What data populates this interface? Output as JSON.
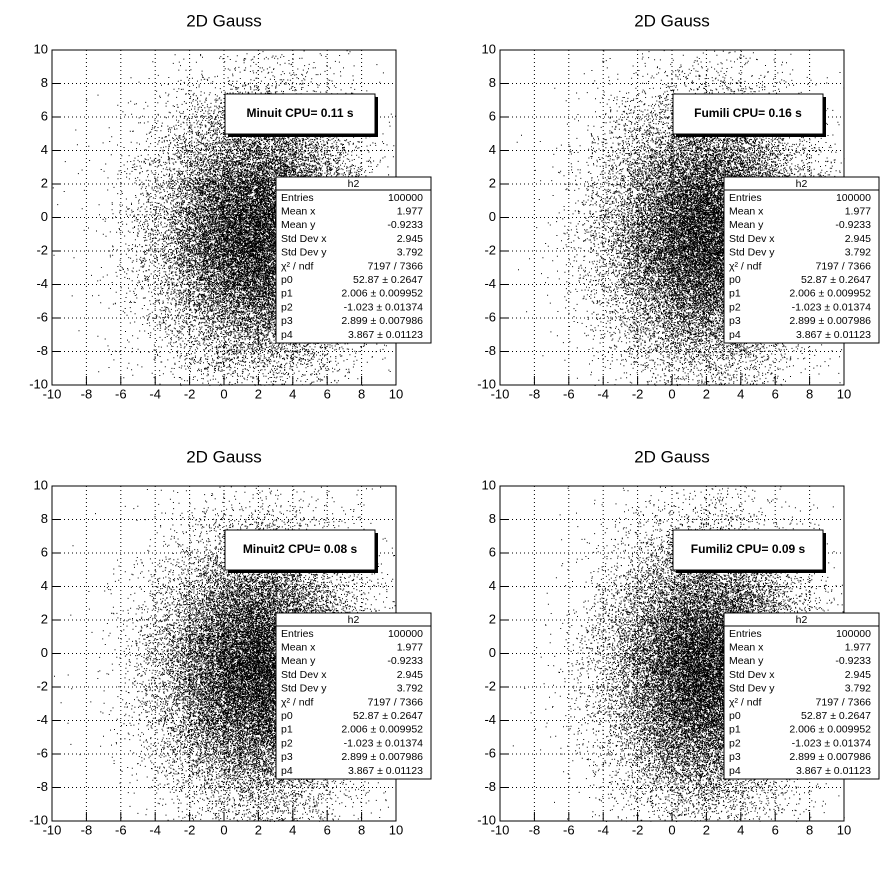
{
  "chart_data": [
    {
      "type": "scatter",
      "title": "2D Gauss",
      "xlim": [
        -10,
        10
      ],
      "ylim": [
        -10,
        10
      ],
      "xticks": [
        -10,
        -8,
        -6,
        -4,
        -2,
        0,
        2,
        4,
        6,
        8,
        10
      ],
      "yticks": [
        -10,
        -8,
        -6,
        -4,
        -2,
        0,
        2,
        4,
        6,
        8,
        10
      ],
      "grid": true,
      "color": "#000000",
      "annotation": "Minuit CPU= 0.11 s",
      "stats": {
        "title": "h2",
        "rows": [
          {
            "name": "Entries",
            "value": 100000
          },
          {
            "name": "Mean x",
            "value": 1.977
          },
          {
            "name": "Mean y",
            "value": -0.9233
          },
          {
            "name": "Std Dev x",
            "value": 2.945
          },
          {
            "name": "Std Dev y",
            "value": 3.792
          },
          {
            "name": "χ² / ndf",
            "value": "7197 / 7366"
          },
          {
            "name": "p0",
            "value": 52.87,
            "label": "52.87 ± 0.2647"
          },
          {
            "name": "p1",
            "value": 2.006,
            "label": "2.006 ± 0.009952"
          },
          {
            "name": "p2",
            "value": -1.023,
            "label": "-1.023 ± 0.01374"
          },
          {
            "name": "p3",
            "value": 2.899,
            "label": "2.899 ± 0.007986"
          },
          {
            "name": "p4",
            "value": 3.867,
            "label": "3.867 ± 0.01123"
          }
        ]
      }
    },
    {
      "type": "scatter",
      "title": "2D Gauss",
      "xlim": [
        -10,
        10
      ],
      "ylim": [
        -10,
        10
      ],
      "xticks": [
        -10,
        -8,
        -6,
        -4,
        -2,
        0,
        2,
        4,
        6,
        8,
        10
      ],
      "yticks": [
        -10,
        -8,
        -6,
        -4,
        -2,
        0,
        2,
        4,
        6,
        8,
        10
      ],
      "grid": true,
      "color": "#000000",
      "annotation": "Fumili CPU= 0.16 s",
      "stats": {
        "title": "h2",
        "rows": [
          {
            "name": "Entries",
            "value": 100000
          },
          {
            "name": "Mean x",
            "value": 1.977
          },
          {
            "name": "Mean y",
            "value": -0.9233
          },
          {
            "name": "Std Dev x",
            "value": 2.945
          },
          {
            "name": "Std Dev y",
            "value": 3.792
          },
          {
            "name": "χ² / ndf",
            "value": "7197 / 7366"
          },
          {
            "name": "p0",
            "value": 52.87,
            "label": "52.87 ± 0.2647"
          },
          {
            "name": "p1",
            "value": 2.006,
            "label": "2.006 ± 0.009952"
          },
          {
            "name": "p2",
            "value": -1.023,
            "label": "-1.023 ± 0.01374"
          },
          {
            "name": "p3",
            "value": 2.899,
            "label": "2.899 ± 0.007986"
          },
          {
            "name": "p4",
            "value": 3.867,
            "label": "3.867 ± 0.01123"
          }
        ]
      }
    },
    {
      "type": "scatter",
      "title": "2D Gauss",
      "xlim": [
        -10,
        10
      ],
      "ylim": [
        -10,
        10
      ],
      "xticks": [
        -10,
        -8,
        -6,
        -4,
        -2,
        0,
        2,
        4,
        6,
        8,
        10
      ],
      "yticks": [
        -10,
        -8,
        -6,
        -4,
        -2,
        0,
        2,
        4,
        6,
        8,
        10
      ],
      "grid": true,
      "color": "#000000",
      "annotation": "Minuit2 CPU= 0.08 s",
      "stats": {
        "title": "h2",
        "rows": [
          {
            "name": "Entries",
            "value": 100000
          },
          {
            "name": "Mean x",
            "value": 1.977
          },
          {
            "name": "Mean y",
            "value": -0.9233
          },
          {
            "name": "Std Dev x",
            "value": 2.945
          },
          {
            "name": "Std Dev y",
            "value": 3.792
          },
          {
            "name": "χ² / ndf",
            "value": "7197 / 7366"
          },
          {
            "name": "p0",
            "value": 52.87,
            "label": "52.87 ± 0.2647"
          },
          {
            "name": "p1",
            "value": 2.006,
            "label": "2.006 ± 0.009952"
          },
          {
            "name": "p2",
            "value": -1.023,
            "label": "-1.023 ± 0.01374"
          },
          {
            "name": "p3",
            "value": 2.899,
            "label": "2.899 ± 0.007986"
          },
          {
            "name": "p4",
            "value": 3.867,
            "label": "3.867 ± 0.01123"
          }
        ]
      }
    },
    {
      "type": "scatter",
      "title": "2D Gauss",
      "xlim": [
        -10,
        10
      ],
      "ylim": [
        -10,
        10
      ],
      "xticks": [
        -10,
        -8,
        -6,
        -4,
        -2,
        0,
        2,
        4,
        6,
        8,
        10
      ],
      "yticks": [
        -10,
        -8,
        -6,
        -4,
        -2,
        0,
        2,
        4,
        6,
        8,
        10
      ],
      "grid": true,
      "color": "#000000",
      "annotation": "Fumili2 CPU= 0.09 s",
      "stats": {
        "title": "h2",
        "rows": [
          {
            "name": "Entries",
            "value": 100000
          },
          {
            "name": "Mean x",
            "value": 1.977
          },
          {
            "name": "Mean y",
            "value": -0.9233
          },
          {
            "name": "Std Dev x",
            "value": 2.945
          },
          {
            "name": "Std Dev y",
            "value": 3.792
          },
          {
            "name": "χ² / ndf",
            "value": "7197 / 7366"
          },
          {
            "name": "p0",
            "value": 52.87,
            "label": "52.87 ± 0.2647"
          },
          {
            "name": "p1",
            "value": 2.006,
            "label": "2.006 ± 0.009952"
          },
          {
            "name": "p2",
            "value": -1.023,
            "label": "-1.023 ± 0.01374"
          },
          {
            "name": "p3",
            "value": 2.899,
            "label": "2.899 ± 0.007986"
          },
          {
            "name": "p4",
            "value": 3.867,
            "label": "3.867 ± 0.01123"
          }
        ]
      }
    }
  ]
}
